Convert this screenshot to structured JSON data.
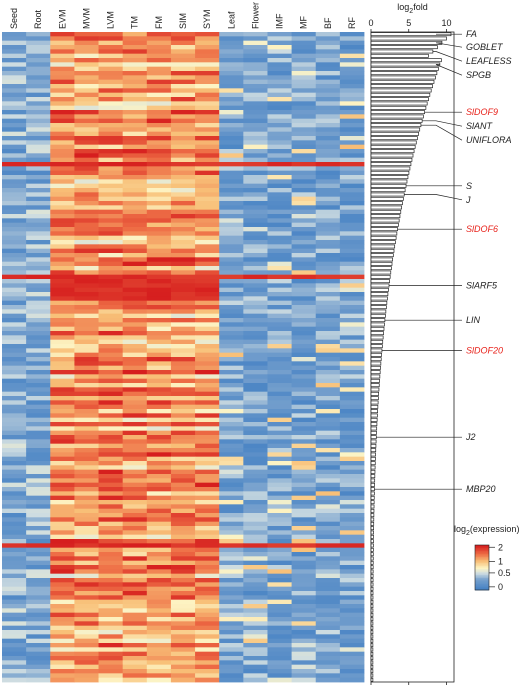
{
  "chart_data": [
    {
      "type": "heatmap",
      "columns": [
        "Seed",
        "Root",
        "EVM",
        "MVM",
        "LVM",
        "TM",
        "FM",
        "SIM",
        "SYM",
        "Leaf",
        "Flower",
        "IMF",
        "MF",
        "BF",
        "RF"
      ],
      "row_count": 150,
      "color_legend": {
        "title": "log2(expression)",
        "title_main": "log",
        "title_sub": "2",
        "title_rest": "(expression)",
        "ticks": [
          "2",
          "1",
          "0.5",
          "0"
        ],
        "colors": {
          "zero": "#4a86c6",
          "low": "#fdf5c4",
          "mid": "#f6b26b",
          "high": "#e0201c"
        }
      },
      "red_band_rows": [
        30,
        56,
        118
      ],
      "high_block_rows": [
        57,
        58,
        59,
        60,
        61
      ]
    },
    {
      "type": "bar",
      "orientation": "horizontal",
      "xlabel": "log2fold",
      "xlabel_main": "log",
      "xlabel_sub": "2",
      "xlabel_rest": "fold",
      "xlim": [
        0,
        11
      ],
      "xticks": [
        "0",
        "5",
        "10"
      ],
      "bar_count": 150,
      "max_value": 10.6,
      "min_value": 0.25,
      "labeled_genes": [
        {
          "name": "FA",
          "row": 0,
          "color": "#222222"
        },
        {
          "name": "GOBLET",
          "row": 2,
          "color": "#222222"
        },
        {
          "name": "LEAFLESS",
          "row": 4,
          "color": "#222222"
        },
        {
          "name": "SPGB",
          "row": 7,
          "color": "#222222"
        },
        {
          "name": "SlDOF9",
          "row": 18,
          "color": "#e8231c"
        },
        {
          "name": "SlANT",
          "row": 20,
          "color": "#222222"
        },
        {
          "name": "UNIFLORA",
          "row": 21,
          "color": "#222222"
        },
        {
          "name": "S",
          "row": 35,
          "color": "#222222"
        },
        {
          "name": "J",
          "row": 37,
          "color": "#222222"
        },
        {
          "name": "SlDOF6",
          "row": 45,
          "color": "#e8231c"
        },
        {
          "name": "SlARF5",
          "row": 58,
          "color": "#222222"
        },
        {
          "name": "LIN",
          "row": 66,
          "color": "#222222"
        },
        {
          "name": "SlDOF20",
          "row": 73,
          "color": "#e8231c"
        },
        {
          "name": "J2",
          "row": 93,
          "color": "#222222"
        },
        {
          "name": "MBP20",
          "row": 105,
          "color": "#222222"
        }
      ]
    }
  ]
}
